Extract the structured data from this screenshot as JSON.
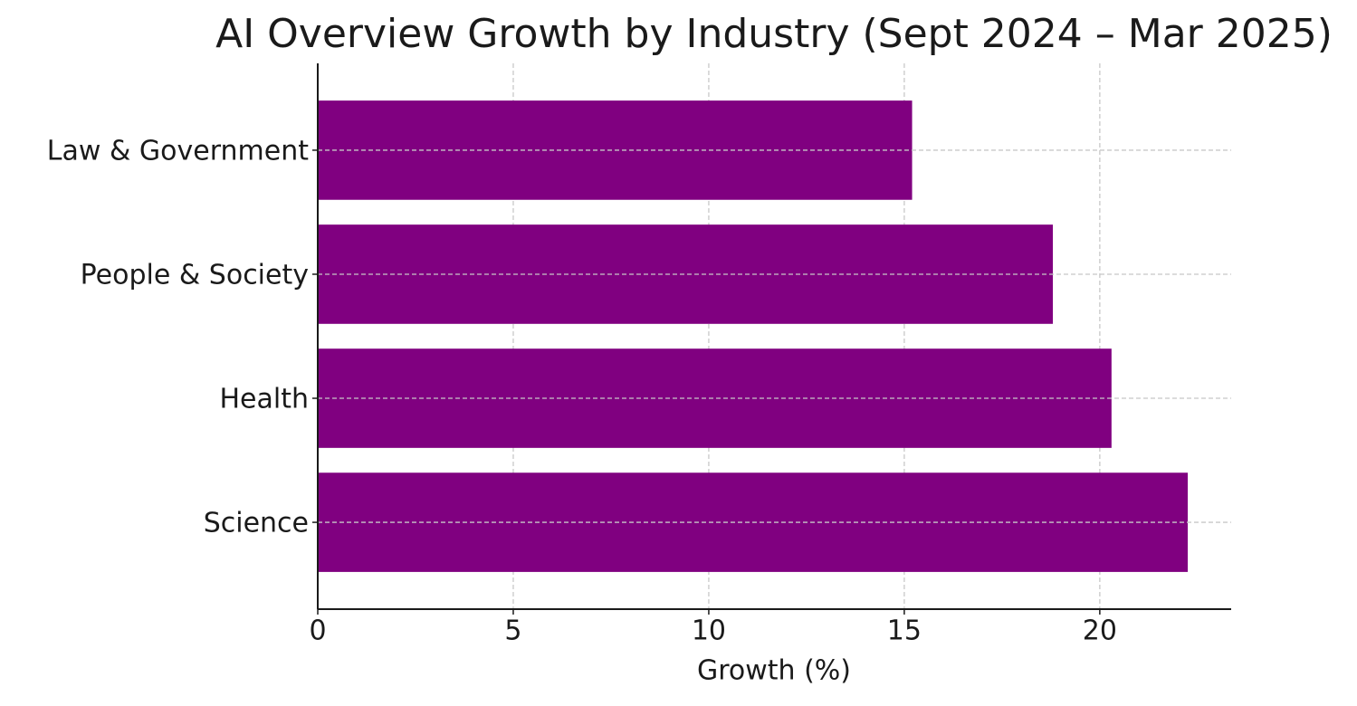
{
  "chart_data": {
    "type": "barh",
    "title": "AI Overview Growth by Industry (Sept 2024 – Mar 2025)",
    "x_label": "Growth (%)",
    "categories": [
      "Law & Government",
      "People & Society",
      "Health",
      "Science"
    ],
    "values": [
      15.2,
      18.8,
      20.3,
      22.25
    ],
    "color": "#800080",
    "xlim": [
      0,
      23.36
    ],
    "xticks": [
      0,
      5,
      10,
      15,
      20
    ],
    "grid": true
  }
}
